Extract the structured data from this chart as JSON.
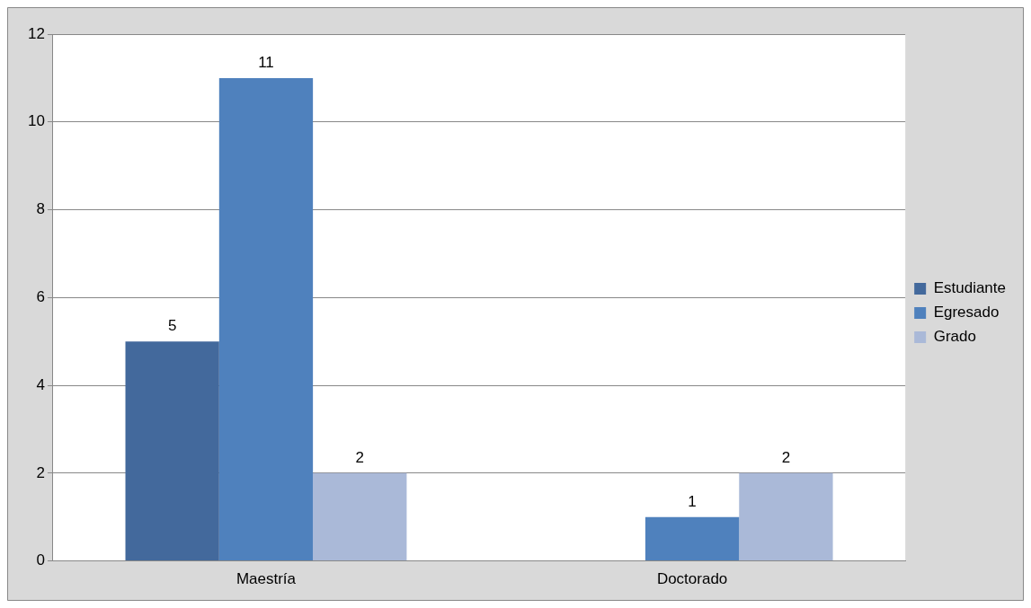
{
  "chart_data": {
    "type": "bar",
    "categories": [
      "Maestría",
      "Doctorado"
    ],
    "series": [
      {
        "name": "Estudiante",
        "color": "#43699c",
        "values": [
          5,
          null
        ]
      },
      {
        "name": "Egresado",
        "color": "#4f81bd",
        "values": [
          11,
          1
        ]
      },
      {
        "name": "Grado",
        "color": "#aab9d8",
        "values": [
          2,
          2
        ]
      }
    ],
    "ylim": [
      0,
      12
    ],
    "yticks": [
      0,
      2,
      4,
      6,
      8,
      10,
      12
    ],
    "grid": "y",
    "legend": "right",
    "data_labels": true
  }
}
